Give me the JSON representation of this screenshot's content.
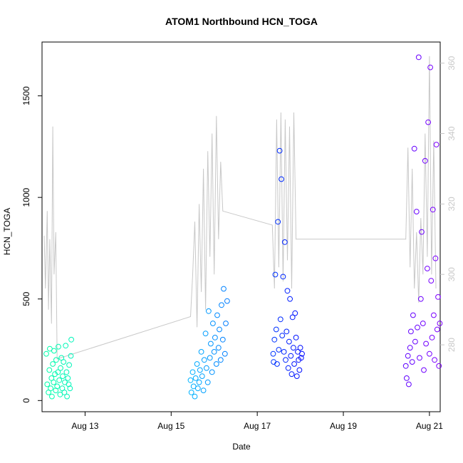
{
  "chart_data": {
    "type": "scatter",
    "title": "ATOM1 Northbound HCN_TOGA",
    "xlabel": "Date",
    "ylabel": "HCN_TOGA",
    "x_ticks": [
      "Aug 13",
      "Aug 15",
      "Aug 17",
      "Aug 19",
      "Aug 21"
    ],
    "x_tick_values": [
      13,
      15,
      17,
      19,
      21
    ],
    "xlim": [
      12.0,
      21.25
    ],
    "y_left_ticks": [
      0,
      500,
      1000,
      1500
    ],
    "ylim_left": [
      -55,
      1765
    ],
    "y_right_ticks": [
      280,
      300,
      320,
      340,
      360
    ],
    "ylim_right": [
      261,
      366
    ],
    "right_axis_color": "#c8c8c8",
    "grid": false,
    "series": [
      {
        "axis": "left",
        "type": "scatter",
        "marker": "open-circle",
        "color_scale": [
          "#00ffaa",
          "#00c8ff",
          "#0000ff",
          "#7f00ff"
        ],
        "points": [
          [
            12.1,
            230
          ],
          [
            12.12,
            80
          ],
          [
            12.15,
            40
          ],
          [
            12.17,
            150
          ],
          [
            12.18,
            255
          ],
          [
            12.2,
            60
          ],
          [
            12.22,
            110
          ],
          [
            12.23,
            20
          ],
          [
            12.25,
            180
          ],
          [
            12.27,
            90
          ],
          [
            12.28,
            245
          ],
          [
            12.3,
            130
          ],
          [
            12.32,
            50
          ],
          [
            12.33,
            200
          ],
          [
            12.35,
            70
          ],
          [
            12.37,
            140
          ],
          [
            12.38,
            265
          ],
          [
            12.4,
            100
          ],
          [
            12.42,
            30
          ],
          [
            12.43,
            160
          ],
          [
            12.45,
            210
          ],
          [
            12.47,
            60
          ],
          [
            12.48,
            120
          ],
          [
            12.5,
            190
          ],
          [
            12.52,
            40
          ],
          [
            12.53,
            90
          ],
          [
            12.55,
            270
          ],
          [
            12.57,
            140
          ],
          [
            12.58,
            20
          ],
          [
            12.6,
            110
          ],
          [
            12.62,
            80
          ],
          [
            12.63,
            175
          ],
          [
            12.65,
            60
          ],
          [
            12.67,
            220
          ],
          [
            12.68,
            300
          ],
          [
            15.45,
            100
          ],
          [
            15.47,
            40
          ],
          [
            15.5,
            140
          ],
          [
            15.52,
            70
          ],
          [
            15.55,
            20
          ],
          [
            15.57,
            110
          ],
          [
            15.6,
            180
          ],
          [
            15.62,
            60
          ],
          [
            15.65,
            90
          ],
          [
            15.67,
            150
          ],
          [
            15.7,
            240
          ],
          [
            15.72,
            120
          ],
          [
            15.75,
            50
          ],
          [
            15.77,
            200
          ],
          [
            15.8,
            330
          ],
          [
            15.82,
            160
          ],
          [
            15.85,
            90
          ],
          [
            15.87,
            440
          ],
          [
            15.9,
            210
          ],
          [
            15.92,
            280
          ],
          [
            15.95,
            140
          ],
          [
            15.97,
            380
          ],
          [
            16.0,
            240
          ],
          [
            16.02,
            310
          ],
          [
            16.05,
            180
          ],
          [
            16.07,
            420
          ],
          [
            16.1,
            260
          ],
          [
            16.12,
            350
          ],
          [
            16.15,
            200
          ],
          [
            16.17,
            470
          ],
          [
            16.2,
            300
          ],
          [
            16.22,
            550
          ],
          [
            16.25,
            230
          ],
          [
            16.27,
            380
          ],
          [
            16.3,
            490
          ],
          [
            17.37,
            230
          ],
          [
            17.38,
            190
          ],
          [
            17.4,
            300
          ],
          [
            17.42,
            620
          ],
          [
            17.44,
            350
          ],
          [
            17.46,
            180
          ],
          [
            17.48,
            880
          ],
          [
            17.5,
            250
          ],
          [
            17.52,
            1230
          ],
          [
            17.54,
            400
          ],
          [
            17.56,
            1090
          ],
          [
            17.58,
            320
          ],
          [
            17.6,
            610
          ],
          [
            17.62,
            240
          ],
          [
            17.64,
            780
          ],
          [
            17.66,
            200
          ],
          [
            17.68,
            340
          ],
          [
            17.7,
            540
          ],
          [
            17.72,
            160
          ],
          [
            17.74,
            290
          ],
          [
            17.76,
            500
          ],
          [
            17.78,
            220
          ],
          [
            17.8,
            130
          ],
          [
            17.82,
            410
          ],
          [
            17.84,
            260
          ],
          [
            17.86,
            180
          ],
          [
            17.88,
            430
          ],
          [
            17.9,
            310
          ],
          [
            17.92,
            120
          ],
          [
            17.94,
            240
          ],
          [
            17.96,
            200
          ],
          [
            17.98,
            150
          ],
          [
            18.0,
            260
          ],
          [
            18.02,
            210
          ],
          [
            18.04,
            230
          ],
          [
            20.45,
            170
          ],
          [
            20.47,
            110
          ],
          [
            20.5,
            220
          ],
          [
            20.52,
            80
          ],
          [
            20.55,
            260
          ],
          [
            20.57,
            340
          ],
          [
            20.6,
            190
          ],
          [
            20.62,
            420
          ],
          [
            20.65,
            1240
          ],
          [
            20.67,
            290
          ],
          [
            20.7,
            930
          ],
          [
            20.72,
            360
          ],
          [
            20.75,
            1690
          ],
          [
            20.77,
            210
          ],
          [
            20.8,
            500
          ],
          [
            20.82,
            830
          ],
          [
            20.85,
            380
          ],
          [
            20.87,
            150
          ],
          [
            20.9,
            1180
          ],
          [
            20.92,
            280
          ],
          [
            20.95,
            650
          ],
          [
            20.97,
            1370
          ],
          [
            21.0,
            230
          ],
          [
            21.02,
            1640
          ],
          [
            21.04,
            590
          ],
          [
            21.06,
            310
          ],
          [
            21.08,
            940
          ],
          [
            21.1,
            420
          ],
          [
            21.12,
            200
          ],
          [
            21.14,
            700
          ],
          [
            21.16,
            1260
          ],
          [
            21.18,
            350
          ],
          [
            21.2,
            510
          ],
          [
            21.22,
            170
          ],
          [
            21.24,
            380
          ]
        ]
      },
      {
        "axis": "right",
        "type": "line",
        "color": "#c8c8c8",
        "points": [
          [
            12.05,
            311
          ],
          [
            12.08,
            296
          ],
          [
            12.12,
            318
          ],
          [
            12.15,
            290
          ],
          [
            12.18,
            310
          ],
          [
            12.22,
            286
          ],
          [
            12.25,
            342
          ],
          [
            12.28,
            300
          ],
          [
            12.32,
            312
          ],
          [
            12.35,
            276
          ],
          [
            15.45,
            288
          ],
          [
            15.5,
            300
          ],
          [
            15.55,
            315
          ],
          [
            15.6,
            285
          ],
          [
            15.65,
            320
          ],
          [
            15.7,
            295
          ],
          [
            15.75,
            330
          ],
          [
            15.8,
            290
          ],
          [
            15.85,
            335
          ],
          [
            15.9,
            305
          ],
          [
            15.95,
            340
          ],
          [
            16.0,
            300
          ],
          [
            16.05,
            345
          ],
          [
            16.1,
            310
          ],
          [
            16.15,
            332
          ],
          [
            16.2,
            318
          ],
          [
            17.35,
            314
          ],
          [
            17.4,
            296
          ],
          [
            17.45,
            344
          ],
          [
            17.5,
            302
          ],
          [
            17.55,
            346
          ],
          [
            17.6,
            298
          ],
          [
            17.65,
            344
          ],
          [
            17.7,
            304
          ],
          [
            17.75,
            342
          ],
          [
            17.8,
            296
          ],
          [
            17.85,
            346
          ],
          [
            17.9,
            310
          ],
          [
            20.45,
            310
          ],
          [
            20.5,
            336
          ],
          [
            20.55,
            302
          ],
          [
            20.6,
            330
          ],
          [
            20.65,
            296
          ],
          [
            20.7,
            312
          ],
          [
            20.75,
            292
          ],
          [
            20.8,
            316
          ],
          [
            20.85,
            300
          ],
          [
            20.9,
            340
          ],
          [
            20.95,
            305
          ],
          [
            21.0,
            362
          ],
          [
            21.05,
            300
          ],
          [
            21.1,
            338
          ],
          [
            21.15,
            296
          ]
        ]
      }
    ]
  }
}
